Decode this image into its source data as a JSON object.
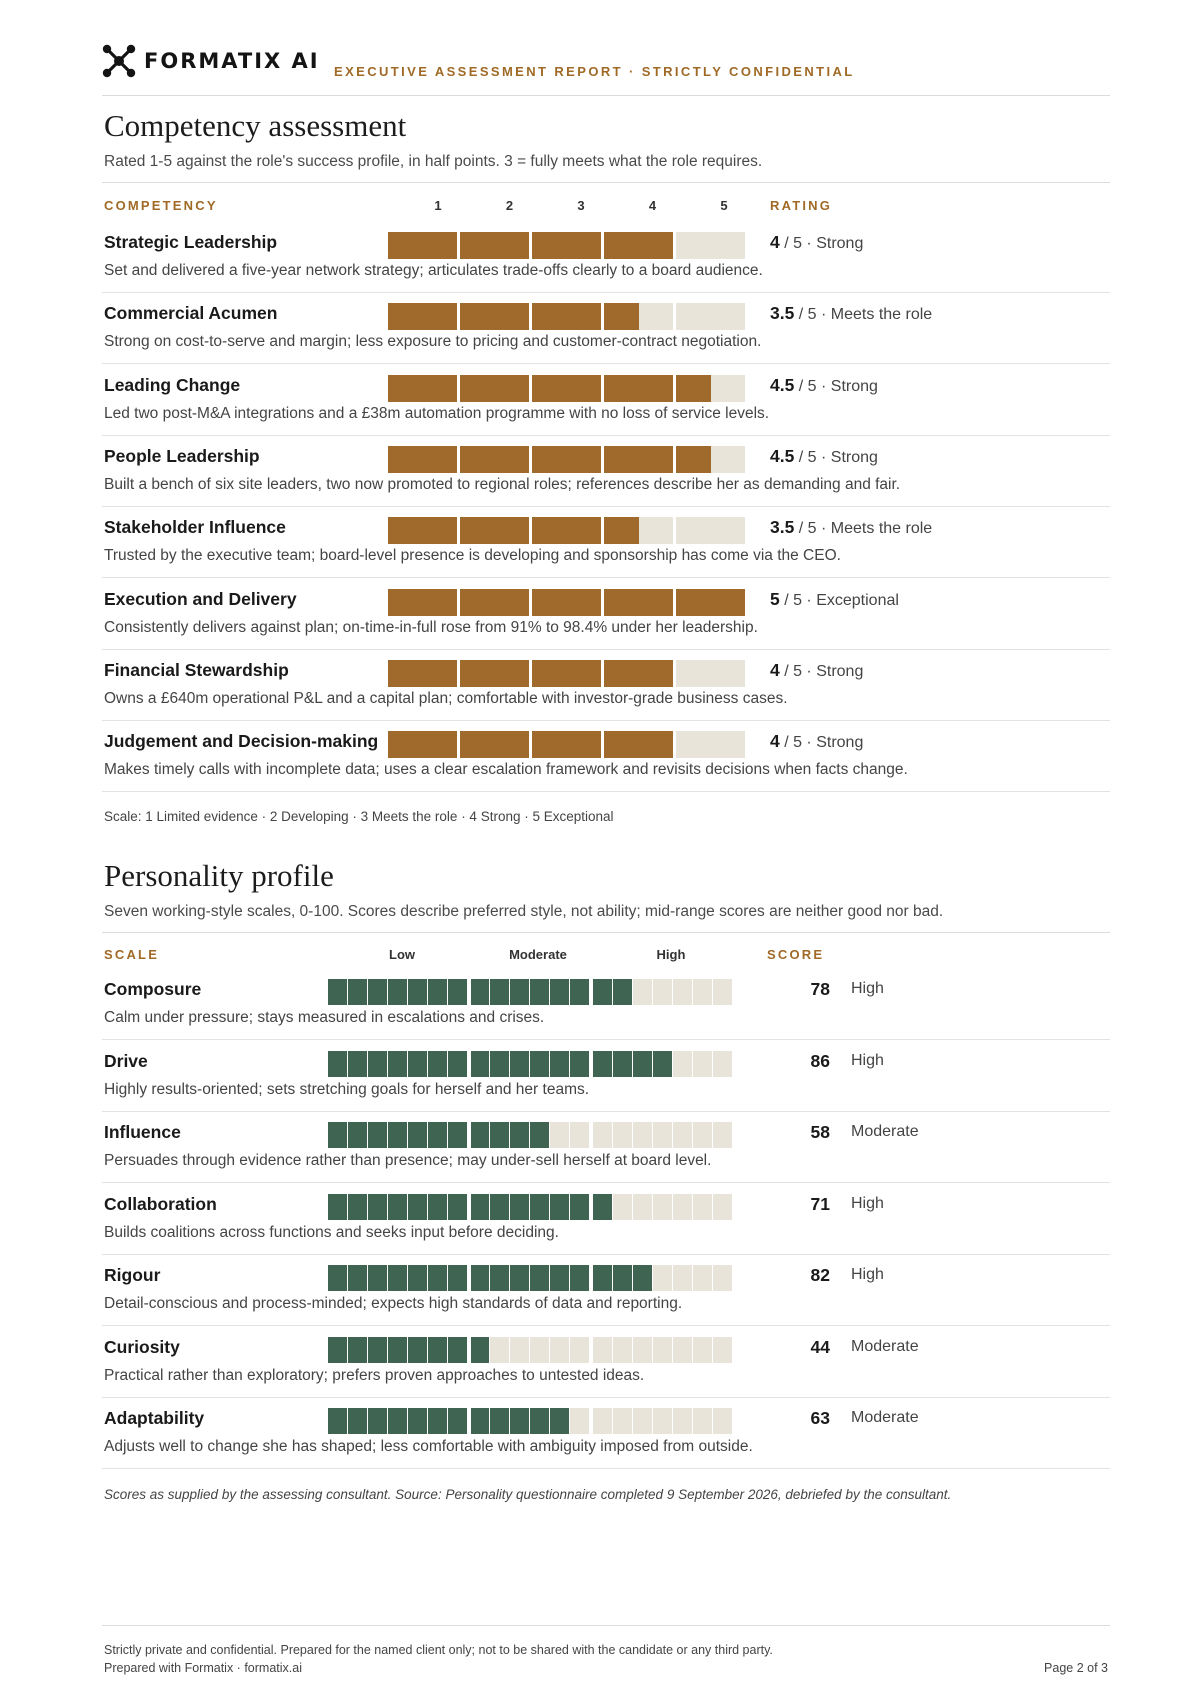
{
  "header": {
    "logo_text": "FORMATIX AI",
    "tagline": "EXECUTIVE ASSESSMENT REPORT  ·  STRICTLY CONFIDENTIAL"
  },
  "competency": {
    "title": "Competency assessment",
    "subtitle": "Rated 1-5 against the role's success profile, in half points. 3 = fully meets what the role requires.",
    "col_competency": "COMPETENCY",
    "col_rating": "RATING",
    "ticks": [
      "1",
      "2",
      "3",
      "4",
      "5"
    ],
    "bar_color": "#a06a2c",
    "track_color": "#e8e4d9",
    "rows": [
      {
        "name": "Strategic Leadership",
        "score": 4,
        "score_text": "4",
        "out_of": "/ 5",
        "label": "Strong",
        "desc": "Set and delivered a five-year network strategy; articulates trade-offs clearly to a board audience."
      },
      {
        "name": "Commercial Acumen",
        "score": 3.5,
        "score_text": "3.5",
        "out_of": "/ 5",
        "label": "Meets the role",
        "desc": "Strong on cost-to-serve and margin; less exposure to pricing and customer-contract negotiation."
      },
      {
        "name": "Leading Change",
        "score": 4.5,
        "score_text": "4.5",
        "out_of": "/ 5",
        "label": "Strong",
        "desc": "Led two post-M&A integrations and a £38m automation programme with no loss of service levels."
      },
      {
        "name": "People Leadership",
        "score": 4.5,
        "score_text": "4.5",
        "out_of": "/ 5",
        "label": "Strong",
        "desc": "Built a bench of six site leaders, two now promoted to regional roles; references describe her as demanding and fair."
      },
      {
        "name": "Stakeholder Influence",
        "score": 3.5,
        "score_text": "3.5",
        "out_of": "/ 5",
        "label": "Meets the role",
        "desc": "Trusted by the executive team; board-level presence is developing and sponsorship has come via the CEO."
      },
      {
        "name": "Execution and Delivery",
        "score": 5,
        "score_text": "5",
        "out_of": "/ 5",
        "label": "Exceptional",
        "desc": "Consistently delivers against plan; on-time-in-full rose from 91% to 98.4% under her leadership."
      },
      {
        "name": "Financial Stewardship",
        "score": 4,
        "score_text": "4",
        "out_of": "/ 5",
        "label": "Strong",
        "desc": "Owns a £640m operational P&L and a capital plan; comfortable with investor-grade business cases."
      },
      {
        "name": "Judgement and Decision-making",
        "score": 4,
        "score_text": "4",
        "out_of": "/ 5",
        "label": "Strong",
        "desc": "Makes timely calls with incomplete data; uses a clear escalation framework and revisits decisions when facts change."
      }
    ],
    "scale_note": "Scale:  1 Limited evidence  ·  2 Developing  ·  3 Meets the role  ·  4 Strong  ·  5 Exceptional"
  },
  "personality": {
    "title": "Personality profile",
    "subtitle": "Seven working-style scales, 0-100. Scores describe preferred style, not ability; mid-range scores are neither good nor bad.",
    "col_scale": "SCALE",
    "col_score": "SCORE",
    "band_low": "Low",
    "band_moderate": "Moderate",
    "band_high": "High",
    "fill_color": "#3f6452",
    "track_color": "#e8e4d9",
    "rows": [
      {
        "name": "Composure",
        "score": 78,
        "band": "High",
        "desc": "Calm under pressure; stays measured in escalations and crises."
      },
      {
        "name": "Drive",
        "score": 86,
        "band": "High",
        "desc": "Highly results-oriented; sets stretching goals for herself and her teams."
      },
      {
        "name": "Influence",
        "score": 58,
        "band": "Moderate",
        "desc": "Persuades through evidence rather than presence; may under-sell herself at board level."
      },
      {
        "name": "Collaboration",
        "score": 71,
        "band": "High",
        "desc": "Builds coalitions across functions and seeks input before deciding."
      },
      {
        "name": "Rigour",
        "score": 82,
        "band": "High",
        "desc": "Detail-conscious and process-minded; expects high standards of data and reporting."
      },
      {
        "name": "Curiosity",
        "score": 44,
        "band": "Moderate",
        "desc": "Practical rather than exploratory; prefers proven approaches to untested ideas."
      },
      {
        "name": "Adaptability",
        "score": 63,
        "band": "Moderate",
        "desc": "Adjusts well to change she has shaped; less comfortable with ambiguity imposed from outside."
      }
    ],
    "source_note": "Scores as supplied by the assessing consultant.  Source: Personality questionnaire completed 9 September 2026, debriefed by the consultant."
  },
  "footer": {
    "line1": "Strictly private and confidential. Prepared for the named client only; not to be shared with the candidate or any third party.",
    "line2": "Prepared with Formatix  ·  formatix.ai",
    "page": "Page 2 of 3"
  }
}
